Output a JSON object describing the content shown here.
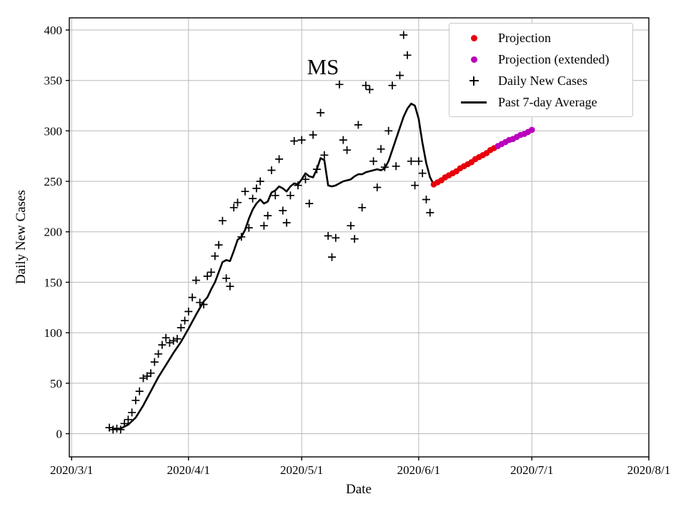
{
  "chart_data": {
    "type": "mixed",
    "title": "MS",
    "xlabel": "Date",
    "ylabel": "Daily New Cases",
    "grid": true,
    "legend_position": "upper right",
    "x_tick_labels": [
      "2020/3/1",
      "2020/4/1",
      "2020/5/1",
      "2020/6/1",
      "2020/7/1",
      "2020/8/1"
    ],
    "x_tick_days": [
      0,
      31,
      61,
      92,
      122,
      153
    ],
    "y_ticks": [
      0,
      50,
      100,
      150,
      200,
      250,
      300,
      350,
      400
    ],
    "ylim": [
      0,
      400
    ],
    "legend_order": [
      2,
      3,
      0,
      1
    ],
    "series": [
      {
        "name": "Daily New Cases",
        "type": "scatter",
        "marker": "plus",
        "color": "#000000",
        "points": [
          [
            "2020-03-11",
            6
          ],
          [
            "2020-03-12",
            4
          ],
          [
            "2020-03-13",
            5
          ],
          [
            "2020-03-14",
            4
          ],
          [
            "2020-03-15",
            10
          ],
          [
            "2020-03-16",
            14
          ],
          [
            "2020-03-17",
            21
          ],
          [
            "2020-03-18",
            33
          ],
          [
            "2020-03-19",
            42
          ],
          [
            "2020-03-20",
            55
          ],
          [
            "2020-03-21",
            57
          ],
          [
            "2020-03-22",
            60
          ],
          [
            "2020-03-23",
            71
          ],
          [
            "2020-03-24",
            79
          ],
          [
            "2020-03-25",
            88
          ],
          [
            "2020-03-26",
            95
          ],
          [
            "2020-03-27",
            90
          ],
          [
            "2020-03-28",
            92
          ],
          [
            "2020-03-29",
            94
          ],
          [
            "2020-03-30",
            105
          ],
          [
            "2020-03-31",
            112
          ],
          [
            "2020-04-01",
            121
          ],
          [
            "2020-04-02",
            135
          ],
          [
            "2020-04-03",
            152
          ],
          [
            "2020-04-04",
            130
          ],
          [
            "2020-04-05",
            128
          ],
          [
            "2020-04-06",
            156
          ],
          [
            "2020-04-07",
            160
          ],
          [
            "2020-04-08",
            176
          ],
          [
            "2020-04-09",
            187
          ],
          [
            "2020-04-10",
            211
          ],
          [
            "2020-04-11",
            154
          ],
          [
            "2020-04-12",
            146
          ],
          [
            "2020-04-13",
            224
          ],
          [
            "2020-04-14",
            229
          ],
          [
            "2020-04-15",
            195
          ],
          [
            "2020-04-16",
            240
          ],
          [
            "2020-04-17",
            204
          ],
          [
            "2020-04-18",
            233
          ],
          [
            "2020-04-19",
            243
          ],
          [
            "2020-04-20",
            250
          ],
          [
            "2020-04-21",
            206
          ],
          [
            "2020-04-22",
            216
          ],
          [
            "2020-04-23",
            261
          ],
          [
            "2020-04-24",
            236
          ],
          [
            "2020-04-25",
            272
          ],
          [
            "2020-04-26",
            221
          ],
          [
            "2020-04-27",
            209
          ],
          [
            "2020-04-28",
            236
          ],
          [
            "2020-04-29",
            290
          ],
          [
            "2020-04-30",
            246
          ],
          [
            "2020-05-01",
            291
          ],
          [
            "2020-05-02",
            252
          ],
          [
            "2020-05-03",
            228
          ],
          [
            "2020-05-04",
            296
          ],
          [
            "2020-05-05",
            262
          ],
          [
            "2020-05-06",
            318
          ],
          [
            "2020-05-07",
            276
          ],
          [
            "2020-05-08",
            196
          ],
          [
            "2020-05-09",
            175
          ],
          [
            "2020-05-10",
            194
          ],
          [
            "2020-05-11",
            346
          ],
          [
            "2020-05-12",
            291
          ],
          [
            "2020-05-13",
            281
          ],
          [
            "2020-05-14",
            206
          ],
          [
            "2020-05-15",
            193
          ],
          [
            "2020-05-16",
            306
          ],
          [
            "2020-05-17",
            224
          ],
          [
            "2020-05-18",
            345
          ],
          [
            "2020-05-19",
            341
          ],
          [
            "2020-05-20",
            270
          ],
          [
            "2020-05-21",
            244
          ],
          [
            "2020-05-22",
            282
          ],
          [
            "2020-05-23",
            264
          ],
          [
            "2020-05-24",
            300
          ],
          [
            "2020-05-25",
            345
          ],
          [
            "2020-05-26",
            265
          ],
          [
            "2020-05-27",
            355
          ],
          [
            "2020-05-28",
            395
          ],
          [
            "2020-05-29",
            375
          ],
          [
            "2020-05-30",
            270
          ],
          [
            "2020-05-31",
            246
          ],
          [
            "2020-06-01",
            270
          ],
          [
            "2020-06-02",
            258
          ],
          [
            "2020-06-03",
            232
          ],
          [
            "2020-06-04",
            219
          ]
        ]
      },
      {
        "name": "Past 7-day Average",
        "type": "line",
        "color": "#000000",
        "points": [
          [
            "2020-03-12",
            5
          ],
          [
            "2020-03-14",
            5
          ],
          [
            "2020-03-16",
            9
          ],
          [
            "2020-03-18",
            16
          ],
          [
            "2020-03-20",
            28
          ],
          [
            "2020-03-22",
            42
          ],
          [
            "2020-03-24",
            56
          ],
          [
            "2020-03-26",
            68
          ],
          [
            "2020-03-28",
            80
          ],
          [
            "2020-03-30",
            91
          ],
          [
            "2020-04-01",
            104
          ],
          [
            "2020-04-03",
            118
          ],
          [
            "2020-04-05",
            131
          ],
          [
            "2020-04-06",
            135
          ],
          [
            "2020-04-07",
            143
          ],
          [
            "2020-04-08",
            150
          ],
          [
            "2020-04-09",
            160
          ],
          [
            "2020-04-10",
            170
          ],
          [
            "2020-04-11",
            172
          ],
          [
            "2020-04-12",
            171
          ],
          [
            "2020-04-13",
            181
          ],
          [
            "2020-04-14",
            192
          ],
          [
            "2020-04-15",
            195
          ],
          [
            "2020-04-16",
            202
          ],
          [
            "2020-04-17",
            213
          ],
          [
            "2020-04-18",
            222
          ],
          [
            "2020-04-19",
            228
          ],
          [
            "2020-04-20",
            232
          ],
          [
            "2020-04-21",
            228
          ],
          [
            "2020-04-22",
            230
          ],
          [
            "2020-04-23",
            239
          ],
          [
            "2020-04-24",
            241
          ],
          [
            "2020-04-25",
            245
          ],
          [
            "2020-04-26",
            243
          ],
          [
            "2020-04-27",
            240
          ],
          [
            "2020-04-28",
            245
          ],
          [
            "2020-04-29",
            248
          ],
          [
            "2020-04-30",
            247
          ],
          [
            "2020-05-01",
            252
          ],
          [
            "2020-05-02",
            258
          ],
          [
            "2020-05-03",
            255
          ],
          [
            "2020-05-04",
            254
          ],
          [
            "2020-05-05",
            262
          ],
          [
            "2020-05-06",
            273
          ],
          [
            "2020-05-07",
            271
          ],
          [
            "2020-05-08",
            246
          ],
          [
            "2020-05-09",
            245
          ],
          [
            "2020-05-10",
            246
          ],
          [
            "2020-05-11",
            248
          ],
          [
            "2020-05-12",
            250
          ],
          [
            "2020-05-13",
            251
          ],
          [
            "2020-05-14",
            252
          ],
          [
            "2020-05-15",
            255
          ],
          [
            "2020-05-16",
            257
          ],
          [
            "2020-05-17",
            257
          ],
          [
            "2020-05-18",
            259
          ],
          [
            "2020-05-19",
            260
          ],
          [
            "2020-05-20",
            261
          ],
          [
            "2020-05-21",
            262
          ],
          [
            "2020-05-22",
            261
          ],
          [
            "2020-05-23",
            263
          ],
          [
            "2020-05-24",
            270
          ],
          [
            "2020-05-25",
            281
          ],
          [
            "2020-05-26",
            292
          ],
          [
            "2020-05-27",
            303
          ],
          [
            "2020-05-28",
            314
          ],
          [
            "2020-05-29",
            322
          ],
          [
            "2020-05-30",
            327
          ],
          [
            "2020-05-31",
            325
          ],
          [
            "2020-06-01",
            312
          ],
          [
            "2020-06-02",
            288
          ],
          [
            "2020-06-03",
            268
          ],
          [
            "2020-06-04",
            254
          ],
          [
            "2020-06-05",
            247
          ]
        ]
      },
      {
        "name": "Projection",
        "type": "scatter",
        "marker": "dot",
        "color": "#e8000b",
        "points": [
          [
            "2020-06-05",
            247
          ],
          [
            "2020-06-06",
            249
          ],
          [
            "2020-06-07",
            251
          ],
          [
            "2020-06-08",
            254
          ],
          [
            "2020-06-09",
            256
          ],
          [
            "2020-06-10",
            258
          ],
          [
            "2020-06-11",
            260
          ],
          [
            "2020-06-12",
            263
          ],
          [
            "2020-06-13",
            265
          ],
          [
            "2020-06-14",
            267
          ],
          [
            "2020-06-15",
            269
          ],
          [
            "2020-06-16",
            272
          ],
          [
            "2020-06-17",
            274
          ],
          [
            "2020-06-18",
            276
          ],
          [
            "2020-06-19",
            278
          ],
          [
            "2020-06-20",
            281
          ],
          [
            "2020-06-21",
            283
          ]
        ]
      },
      {
        "name": "Projection (extended)",
        "type": "scatter",
        "marker": "dot",
        "color": "#bb00bb",
        "points": [
          [
            "2020-06-22",
            285
          ],
          [
            "2020-06-23",
            287
          ],
          [
            "2020-06-24",
            289
          ],
          [
            "2020-06-25",
            291
          ],
          [
            "2020-06-26",
            292
          ],
          [
            "2020-06-27",
            294
          ],
          [
            "2020-06-28",
            296
          ],
          [
            "2020-06-29",
            297
          ],
          [
            "2020-06-30",
            299
          ],
          [
            "2020-07-01",
            301
          ]
        ]
      }
    ]
  }
}
